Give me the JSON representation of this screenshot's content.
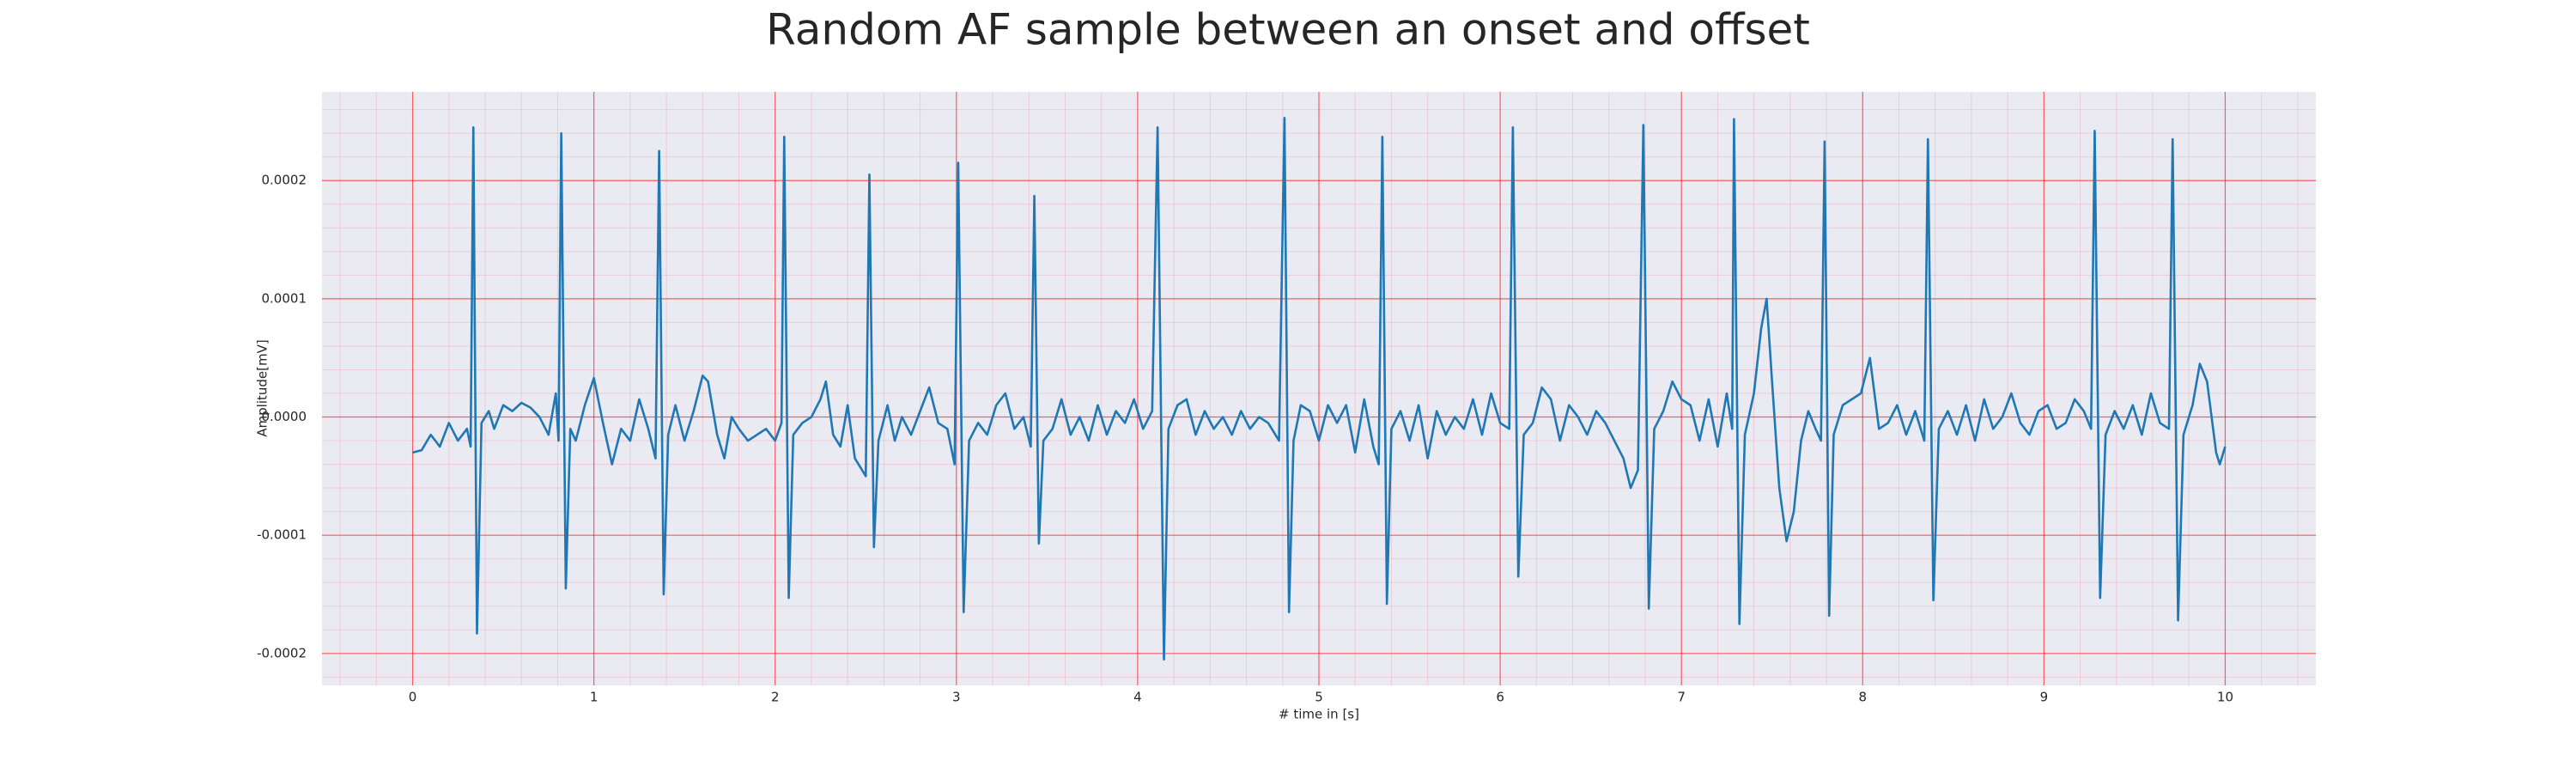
{
  "chart_data": {
    "type": "line",
    "title": "Random AF sample between an onset and offset",
    "xlabel": "# time in [s]",
    "ylabel": "Amplitude[mV]",
    "color": "#1f77b4",
    "background": "#eaeaf2",
    "grid": true,
    "grid_color": "#ff0000",
    "minor_grid": true,
    "xlim": [
      -0.5,
      10.5
    ],
    "ylim": [
      -0.000227,
      0.000275
    ],
    "xticks": [
      0,
      1,
      2,
      3,
      4,
      5,
      6,
      7,
      8,
      9,
      10
    ],
    "yticks": [
      -0.0002,
      -0.0001,
      {
        "value": 0,
        "label": "0.0000"
      },
      0.0001,
      0.0002
    ],
    "x": [
      0,
      0.05,
      0.1,
      0.15,
      0.2,
      0.25,
      0.3,
      0.32,
      0.335,
      0.355,
      0.38,
      0.42,
      0.45,
      0.5,
      0.55,
      0.6,
      0.65,
      0.7,
      0.75,
      0.79,
      0.805,
      0.82,
      0.845,
      0.87,
      0.9,
      0.95,
      1.0,
      1.05,
      1.1,
      1.15,
      1.2,
      1.25,
      1.3,
      1.34,
      1.36,
      1.385,
      1.41,
      1.45,
      1.5,
      1.55,
      1.6,
      1.63,
      1.68,
      1.72,
      1.76,
      1.8,
      1.85,
      1.9,
      1.95,
      2.0,
      2.035,
      2.05,
      2.075,
      2.1,
      2.15,
      2.2,
      2.25,
      2.28,
      2.32,
      2.36,
      2.4,
      2.44,
      2.5,
      2.52,
      2.545,
      2.57,
      2.62,
      2.66,
      2.7,
      2.75,
      2.8,
      2.85,
      2.9,
      2.95,
      2.99,
      3.01,
      3.04,
      3.07,
      3.12,
      3.17,
      3.22,
      3.27,
      3.32,
      3.37,
      3.41,
      3.43,
      3.455,
      3.48,
      3.53,
      3.58,
      3.63,
      3.68,
      3.73,
      3.78,
      3.83,
      3.88,
      3.93,
      3.98,
      4.03,
      4.08,
      4.11,
      4.145,
      4.17,
      4.22,
      4.27,
      4.32,
      4.37,
      4.42,
      4.47,
      4.52,
      4.57,
      4.62,
      4.67,
      4.72,
      4.78,
      4.81,
      4.835,
      4.86,
      4.9,
      4.95,
      5.0,
      5.05,
      5.1,
      5.15,
      5.2,
      5.25,
      5.3,
      5.33,
      5.35,
      5.375,
      5.4,
      5.45,
      5.5,
      5.55,
      5.6,
      5.65,
      5.7,
      5.75,
      5.8,
      5.85,
      5.9,
      5.95,
      6.0,
      6.05,
      6.07,
      6.1,
      6.13,
      6.18,
      6.23,
      6.28,
      6.33,
      6.38,
      6.43,
      6.48,
      6.53,
      6.58,
      6.63,
      6.68,
      6.72,
      6.76,
      6.79,
      6.82,
      6.85,
      6.9,
      6.95,
      7.0,
      7.05,
      7.1,
      7.15,
      7.2,
      7.25,
      7.28,
      7.29,
      7.32,
      7.35,
      7.4,
      7.44,
      7.47,
      7.5,
      7.54,
      7.58,
      7.62,
      7.66,
      7.7,
      7.74,
      7.77,
      7.79,
      7.815,
      7.84,
      7.89,
      7.94,
      7.99,
      8.04,
      8.09,
      8.14,
      8.19,
      8.24,
      8.29,
      8.34,
      8.36,
      8.39,
      8.42,
      8.47,
      8.52,
      8.57,
      8.62,
      8.67,
      8.72,
      8.77,
      8.82,
      8.87,
      8.92,
      8.97,
      9.02,
      9.07,
      9.12,
      9.17,
      9.22,
      9.26,
      9.28,
      9.31,
      9.34,
      9.39,
      9.44,
      9.49,
      9.54,
      9.59,
      9.64,
      9.69,
      9.71,
      9.74,
      9.77,
      9.82,
      9.86,
      9.9,
      9.95,
      9.97,
      10.0
    ],
    "values": [
      -3e-05,
      -2.8e-05,
      -1.5e-05,
      -2.5e-05,
      -5e-06,
      -2e-05,
      -1e-05,
      -2.5e-05,
      0.000245,
      -0.000183,
      -5e-06,
      5e-06,
      -1e-05,
      1e-05,
      5e-06,
      1.2e-05,
      8e-06,
      0,
      -1.5e-05,
      2e-05,
      -2e-05,
      0.00024,
      -0.000145,
      -1e-05,
      -2e-05,
      1e-05,
      3.3e-05,
      -5e-06,
      -4e-05,
      -1e-05,
      -2e-05,
      1.5e-05,
      -1e-05,
      -3.5e-05,
      0.000225,
      -0.00015,
      -1.5e-05,
      1e-05,
      -2e-05,
      5e-06,
      3.5e-05,
      3e-05,
      -1.5e-05,
      -3.5e-05,
      0,
      -1e-05,
      -2e-05,
      -1.5e-05,
      -1e-05,
      -2e-05,
      -5e-06,
      0.000237,
      -0.000153,
      -1.5e-05,
      -5e-06,
      0,
      1.5e-05,
      3e-05,
      -1.5e-05,
      -2.5e-05,
      1e-05,
      -3.5e-05,
      -5e-05,
      0.000205,
      -0.00011,
      -2e-05,
      1e-05,
      -2e-05,
      0,
      -1.5e-05,
      5e-06,
      2.5e-05,
      -5e-06,
      -1e-05,
      -4e-05,
      0.000215,
      -0.000165,
      -2e-05,
      -5e-06,
      -1.5e-05,
      1e-05,
      2e-05,
      -1e-05,
      0,
      -2.5e-05,
      0.000187,
      -0.000107,
      -2e-05,
      -1e-05,
      1.5e-05,
      -1.5e-05,
      0,
      -2e-05,
      1e-05,
      -1.5e-05,
      5e-06,
      -5e-06,
      1.5e-05,
      -1e-05,
      5e-06,
      0.000245,
      -0.000205,
      -1e-05,
      1e-05,
      1.5e-05,
      -1.5e-05,
      5e-06,
      -1e-05,
      0,
      -1.5e-05,
      5e-06,
      -1e-05,
      0,
      -5e-06,
      -2e-05,
      0.000253,
      -0.000165,
      -2e-05,
      1e-05,
      5e-06,
      -2e-05,
      1e-05,
      -5e-06,
      1e-05,
      -3e-05,
      1.5e-05,
      -2.5e-05,
      -4e-05,
      0.000237,
      -0.000158,
      -1e-05,
      5e-06,
      -2e-05,
      1e-05,
      -3.5e-05,
      5e-06,
      -1.5e-05,
      0,
      -1e-05,
      1.5e-05,
      -1.5e-05,
      2e-05,
      -5e-06,
      -1e-05,
      0.000245,
      -0.000135,
      -1.5e-05,
      -5e-06,
      2.5e-05,
      1.5e-05,
      -2e-05,
      1e-05,
      0,
      -1.5e-05,
      5e-06,
      -5e-06,
      -2e-05,
      -3.5e-05,
      -6e-05,
      -4.5e-05,
      0.000247,
      -0.000162,
      -1e-05,
      5e-06,
      3e-05,
      1.5e-05,
      1e-05,
      -2e-05,
      1.5e-05,
      -2.5e-05,
      2e-05,
      -1e-05,
      0.000252,
      -0.000175,
      -1.5e-05,
      2e-05,
      7.5e-05,
      0.0001,
      3e-05,
      -6e-05,
      -0.000105,
      -8e-05,
      -2e-05,
      5e-06,
      -1e-05,
      -2e-05,
      0.000233,
      -0.000168,
      -1.5e-05,
      1e-05,
      1.5e-05,
      2e-05,
      5e-05,
      -1e-05,
      -5e-06,
      1e-05,
      -1.5e-05,
      5e-06,
      -2e-05,
      0.000235,
      -0.000155,
      -1e-05,
      5e-06,
      -1.5e-05,
      1e-05,
      -2e-05,
      1.5e-05,
      -1e-05,
      0,
      2e-05,
      -5e-06,
      -1.5e-05,
      5e-06,
      1e-05,
      -1e-05,
      -5e-06,
      1.5e-05,
      5e-06,
      -1e-05,
      0.000242,
      -0.000153,
      -1.5e-05,
      5e-06,
      -1e-05,
      1e-05,
      -1.5e-05,
      2e-05,
      -5e-06,
      -1e-05,
      0.000235,
      -0.000172,
      -1.5e-05,
      1e-05,
      4.5e-05,
      3e-05,
      -3e-05,
      -4e-05,
      -2.5e-05
    ]
  }
}
